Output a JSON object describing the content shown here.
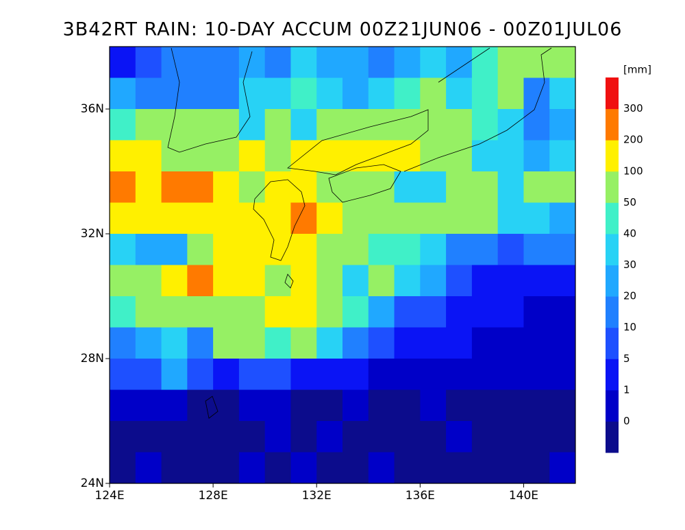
{
  "chart_data": {
    "type": "heatmap",
    "title": "3B42RT RAIN: 10-DAY ACCUM 00Z21JUN06 - 00Z01JUL06",
    "xlim": [
      124,
      142
    ],
    "ylim": [
      24,
      38
    ],
    "xticks": [
      {
        "value": 124,
        "label": "124E"
      },
      {
        "value": 128,
        "label": "128E"
      },
      {
        "value": 132,
        "label": "132E"
      },
      {
        "value": 136,
        "label": "136E"
      },
      {
        "value": 140,
        "label": "140E"
      }
    ],
    "yticks": [
      {
        "value": 24,
        "label": "24N"
      },
      {
        "value": 28,
        "label": "28N"
      },
      {
        "value": 32,
        "label": "32N"
      },
      {
        "value": 36,
        "label": "36N"
      }
    ],
    "legend_unit": "[mm]",
    "levels": [
      0,
      1,
      5,
      10,
      20,
      30,
      40,
      50,
      100,
      200,
      300
    ],
    "colors": [
      "#0c0c8c",
      "#0000c8",
      "#0a14f5",
      "#1e50ff",
      "#2080ff",
      "#20a8ff",
      "#28d2f5",
      "#40f0c8",
      "#96f064",
      "#fff000",
      "#ff7a00",
      "#f01010"
    ],
    "values": [
      [
        3,
        8,
        15,
        15,
        15,
        25,
        15,
        35,
        30,
        25,
        20,
        30,
        40,
        30,
        45,
        60,
        60,
        60
      ],
      [
        25,
        20,
        15,
        15,
        20,
        35,
        40,
        45,
        40,
        30,
        40,
        45,
        60,
        40,
        50,
        60,
        20,
        40
      ],
      [
        45,
        60,
        60,
        60,
        60,
        40,
        80,
        40,
        70,
        60,
        80,
        80,
        90,
        60,
        50,
        40,
        15,
        30
      ],
      [
        120,
        120,
        90,
        80,
        90,
        120,
        100,
        120,
        120,
        120,
        150,
        150,
        80,
        60,
        40,
        35,
        30,
        40
      ],
      [
        250,
        180,
        250,
        260,
        150,
        100,
        120,
        120,
        80,
        60,
        60,
        40,
        40,
        60,
        70,
        40,
        60,
        70
      ],
      [
        120,
        110,
        150,
        150,
        140,
        200,
        150,
        250,
        120,
        60,
        60,
        60,
        70,
        80,
        70,
        40,
        35,
        30
      ],
      [
        40,
        25,
        30,
        60,
        120,
        110,
        130,
        110,
        80,
        60,
        50,
        50,
        40,
        20,
        15,
        10,
        15,
        20
      ],
      [
        60,
        80,
        150,
        220,
        200,
        120,
        100,
        110,
        60,
        40,
        60,
        40,
        30,
        10,
        5,
        5,
        3,
        2
      ],
      [
        50,
        60,
        70,
        60,
        80,
        100,
        120,
        110,
        80,
        50,
        30,
        10,
        8,
        5,
        3,
        2,
        1,
        0.5
      ],
      [
        20,
        30,
        40,
        15,
        60,
        60,
        50,
        70,
        40,
        15,
        10,
        5,
        3,
        2,
        1,
        0.5,
        0.5,
        0.5
      ],
      [
        8,
        10,
        25,
        8,
        5,
        8,
        7,
        5,
        3,
        2,
        1,
        0.5,
        0.5,
        0.5,
        0.5,
        0.5,
        0.5,
        0.5
      ],
      [
        0.5,
        0.5,
        0.5,
        0,
        0,
        0.5,
        0.5,
        0,
        0,
        0.5,
        0,
        0,
        0.5,
        0,
        0,
        0,
        0,
        0
      ],
      [
        0,
        0,
        0,
        0,
        0,
        0,
        0.5,
        0,
        0.5,
        0,
        0,
        0,
        0,
        0.5,
        0,
        0,
        0,
        0
      ],
      [
        0,
        0.5,
        0,
        0,
        0,
        0.5,
        0,
        0.5,
        0,
        0,
        0.5,
        0,
        0,
        0,
        0,
        0,
        0,
        0.5
      ]
    ]
  }
}
